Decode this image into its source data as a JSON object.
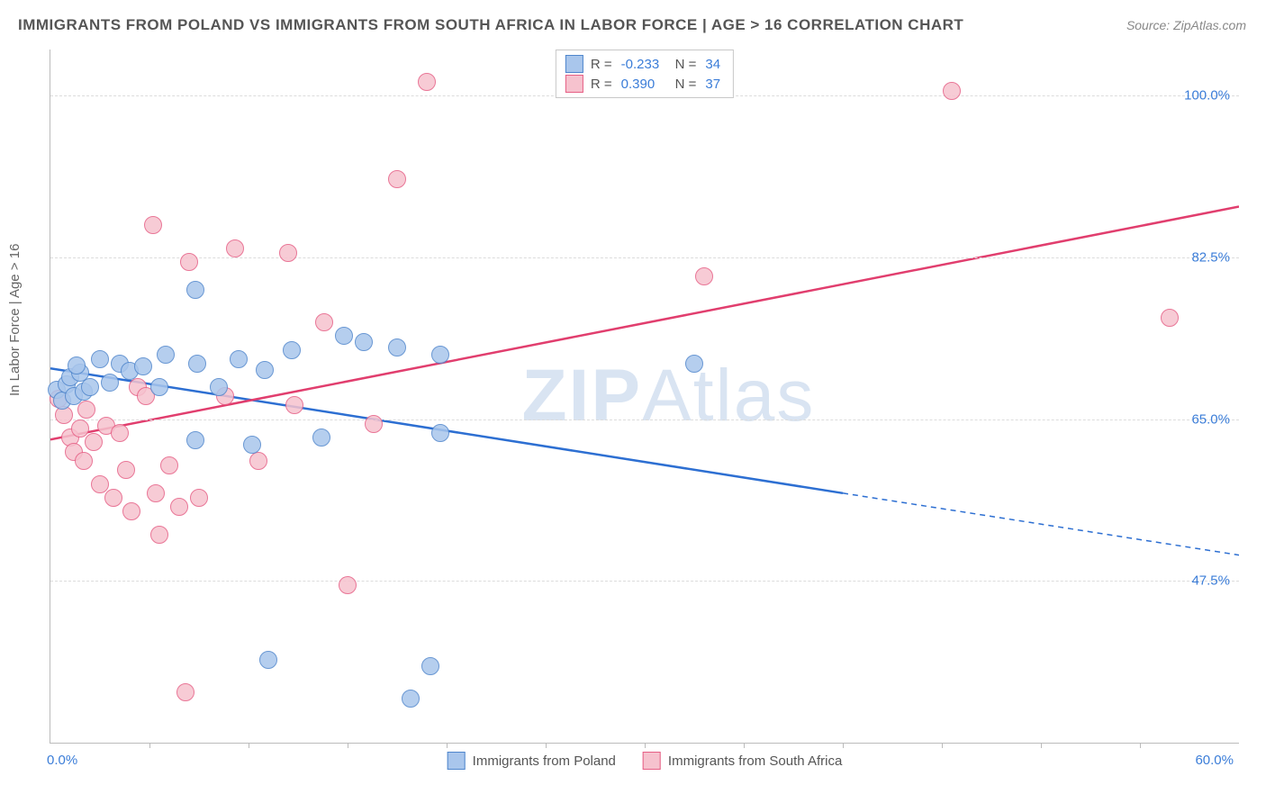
{
  "title": "IMMIGRANTS FROM POLAND VS IMMIGRANTS FROM SOUTH AFRICA IN LABOR FORCE | AGE > 16 CORRELATION CHART",
  "source": "Source: ZipAtlas.com",
  "ylabel": "In Labor Force | Age > 16",
  "watermark_bold": "ZIP",
  "watermark_light": "Atlas",
  "chart": {
    "type": "scatter-correlation",
    "background_color": "#ffffff",
    "grid_color": "#dcdcdc",
    "axis_color": "#bbbbbb",
    "xlim": [
      0,
      60
    ],
    "ylim": [
      30,
      105
    ],
    "xticks_minor": [
      5,
      10,
      15,
      20,
      25,
      30,
      35,
      40,
      45,
      50,
      55
    ],
    "xticks_major": [
      0,
      60
    ],
    "xtick_labels": [
      "0.0%",
      "60.0%"
    ],
    "yticks": [
      47.5,
      65.0,
      82.5,
      100.0
    ],
    "ytick_labels": [
      "47.5%",
      "65.0%",
      "82.5%",
      "100.0%"
    ],
    "point_radius": 10,
    "point_border_width": 1.5,
    "series": [
      {
        "name": "Immigrants from Poland",
        "color_fill": "#a9c6ec",
        "color_stroke": "#4f86cc",
        "R": "-0.233",
        "N": "34",
        "trend": {
          "x1": 0,
          "y1": 70.5,
          "x2_solid": 40,
          "y2_solid": 57.0,
          "x2_dash": 60,
          "y2_dash": 50.3,
          "color": "#2d6fd2",
          "width": 2.5
        },
        "points": [
          [
            0.3,
            68.2
          ],
          [
            0.6,
            67.0
          ],
          [
            0.8,
            68.8
          ],
          [
            1.0,
            69.5
          ],
          [
            1.2,
            67.5
          ],
          [
            1.5,
            70.0
          ],
          [
            1.7,
            68.0
          ],
          [
            2.0,
            68.5
          ],
          [
            1.3,
            70.8
          ],
          [
            2.5,
            71.5
          ],
          [
            3.0,
            69.0
          ],
          [
            3.5,
            71.0
          ],
          [
            4.0,
            70.2
          ],
          [
            4.7,
            70.7
          ],
          [
            5.5,
            68.5
          ],
          [
            5.8,
            72.0
          ],
          [
            7.3,
            79.0
          ],
          [
            7.3,
            62.7
          ],
          [
            7.4,
            71.0
          ],
          [
            8.5,
            68.5
          ],
          [
            9.5,
            71.5
          ],
          [
            10.2,
            62.2
          ],
          [
            10.8,
            70.3
          ],
          [
            11.0,
            39.0
          ],
          [
            12.2,
            72.5
          ],
          [
            13.7,
            63.0
          ],
          [
            14.8,
            74.0
          ],
          [
            15.8,
            73.3
          ],
          [
            17.5,
            72.8
          ],
          [
            18.2,
            34.8
          ],
          [
            19.2,
            38.3
          ],
          [
            19.7,
            72.0
          ],
          [
            19.7,
            63.5
          ],
          [
            32.5,
            71.0
          ]
        ]
      },
      {
        "name": "Immigrants from South Africa",
        "color_fill": "#f6c2ce",
        "color_stroke": "#e65f85",
        "R": "0.390",
        "N": "37",
        "trend": {
          "x1": 0,
          "y1": 62.8,
          "x2_solid": 60,
          "y2_solid": 88.0,
          "x2_dash": 60,
          "y2_dash": 88.0,
          "color": "#e13e6e",
          "width": 2.5
        },
        "points": [
          [
            0.4,
            67.2
          ],
          [
            0.7,
            65.5
          ],
          [
            1.0,
            63.0
          ],
          [
            1.2,
            61.5
          ],
          [
            1.5,
            64.0
          ],
          [
            1.7,
            60.5
          ],
          [
            1.8,
            66.0
          ],
          [
            2.2,
            62.5
          ],
          [
            2.5,
            58.0
          ],
          [
            2.8,
            64.3
          ],
          [
            3.2,
            56.5
          ],
          [
            3.5,
            63.5
          ],
          [
            3.8,
            59.5
          ],
          [
            4.1,
            55.0
          ],
          [
            4.4,
            68.5
          ],
          [
            4.8,
            67.5
          ],
          [
            5.2,
            86.0
          ],
          [
            5.3,
            57.0
          ],
          [
            5.5,
            52.5
          ],
          [
            6.0,
            60.0
          ],
          [
            6.5,
            55.5
          ],
          [
            6.8,
            35.5
          ],
          [
            7.0,
            82.0
          ],
          [
            7.5,
            56.5
          ],
          [
            8.8,
            67.5
          ],
          [
            9.3,
            83.5
          ],
          [
            10.5,
            60.5
          ],
          [
            12.0,
            83.0
          ],
          [
            12.3,
            66.5
          ],
          [
            13.8,
            75.5
          ],
          [
            15.0,
            47.0
          ],
          [
            16.3,
            64.5
          ],
          [
            17.5,
            91.0
          ],
          [
            19.0,
            101.5
          ],
          [
            33.0,
            80.5
          ],
          [
            45.5,
            100.5
          ],
          [
            56.5,
            76.0
          ]
        ]
      }
    ],
    "legend_title_color": "#555555",
    "legend_value_color": "#3b7dd8",
    "label_fontsize": 15,
    "title_fontsize": 17
  }
}
